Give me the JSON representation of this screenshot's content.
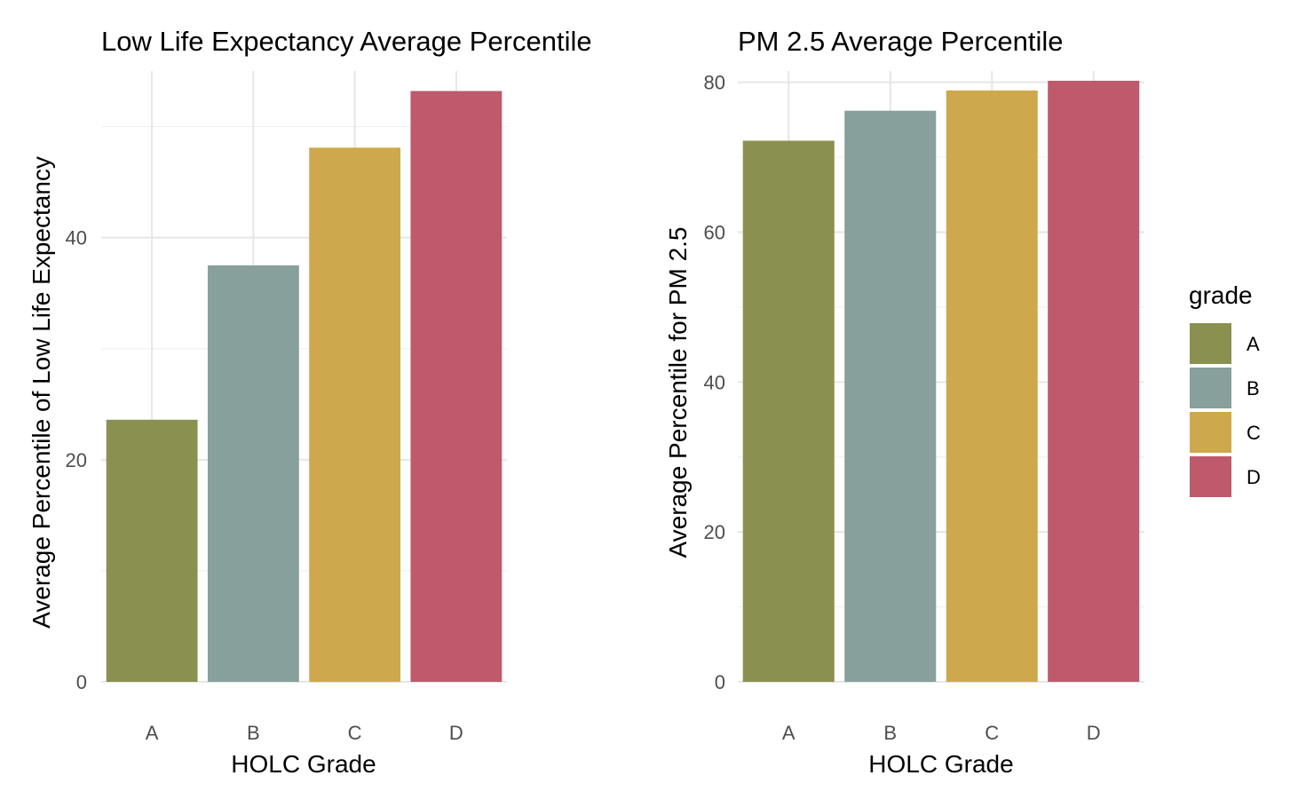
{
  "chart_data": [
    {
      "type": "bar",
      "title": "Low Life Expectancy Average Percentile",
      "xlabel": "HOLC Grade",
      "ylabel": "Average Percentile of Low Life Expectancy",
      "categories": [
        "A",
        "B",
        "C",
        "D"
      ],
      "values": [
        23.6,
        37.5,
        48.1,
        53.2
      ],
      "ylim": [
        0,
        55
      ],
      "yticks": [
        0,
        20,
        40
      ],
      "yticks_minor": [
        10,
        30,
        50
      ],
      "colors": [
        "#8a914f",
        "#87a09c",
        "#cea84d",
        "#be5a6c"
      ],
      "grid": true
    },
    {
      "type": "bar",
      "title": "PM 2.5 Average Percentile",
      "xlabel": "HOLC Grade",
      "ylabel": "Average Percentile for PM 2.5",
      "categories": [
        "A",
        "B",
        "C",
        "D"
      ],
      "values": [
        72.2,
        76.2,
        78.9,
        80.2
      ],
      "ylim": [
        0,
        81.5
      ],
      "yticks": [
        0,
        20,
        40,
        60,
        80
      ],
      "yticks_minor": [
        10,
        30,
        50,
        70
      ],
      "colors": [
        "#8a914f",
        "#87a09c",
        "#cea84d",
        "#be5a6c"
      ],
      "grid": true
    }
  ],
  "legend": {
    "title": "grade",
    "position": "right",
    "items": [
      {
        "label": "A",
        "color": "#8a914f"
      },
      {
        "label": "B",
        "color": "#87a09c"
      },
      {
        "label": "C",
        "color": "#cea84d"
      },
      {
        "label": "D",
        "color": "#be5a6c"
      }
    ]
  }
}
